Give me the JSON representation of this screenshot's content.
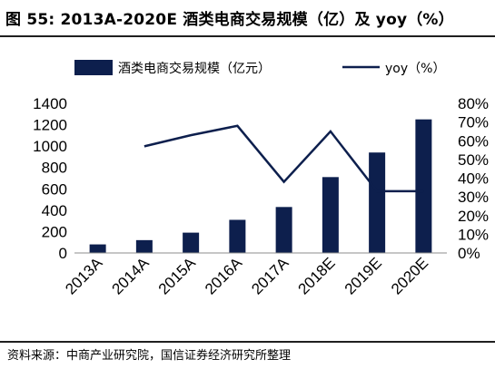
{
  "header": {
    "title": "图 55: 2013A-2020E 酒类电商交易规模（亿）及 yoy（%）"
  },
  "footer": {
    "source": "资料来源：中商产业研究院，国信证券经济研究所整理"
  },
  "colors": {
    "bar": "#0d1f4d",
    "line": "#0d1f4d"
  },
  "chart_data": {
    "type": "bar",
    "categories": [
      "2013A",
      "2014A",
      "2015A",
      "2016A",
      "2017A",
      "2018E",
      "2019E",
      "2020E"
    ],
    "series": [
      {
        "name": "酒类电商交易规模（亿元）",
        "type": "bar",
        "axis": "left",
        "values": [
          80,
          120,
          190,
          310,
          430,
          710,
          940,
          1250
        ]
      },
      {
        "name": "yoy（%）",
        "type": "line",
        "axis": "right",
        "values": [
          null,
          57,
          63,
          68,
          38,
          65,
          33,
          33
        ]
      }
    ],
    "y_left": {
      "ylim": [
        0,
        1400
      ],
      "ticks": [
        "0",
        "200",
        "400",
        "600",
        "800",
        "1000",
        "1200",
        "1400"
      ]
    },
    "y_right": {
      "ylim": [
        0,
        80
      ],
      "ticks": [
        "0%",
        "10%",
        "20%",
        "30%",
        "40%",
        "50%",
        "60%",
        "70%",
        "80%"
      ]
    },
    "legend": {
      "placement": "top"
    },
    "grid": false
  }
}
